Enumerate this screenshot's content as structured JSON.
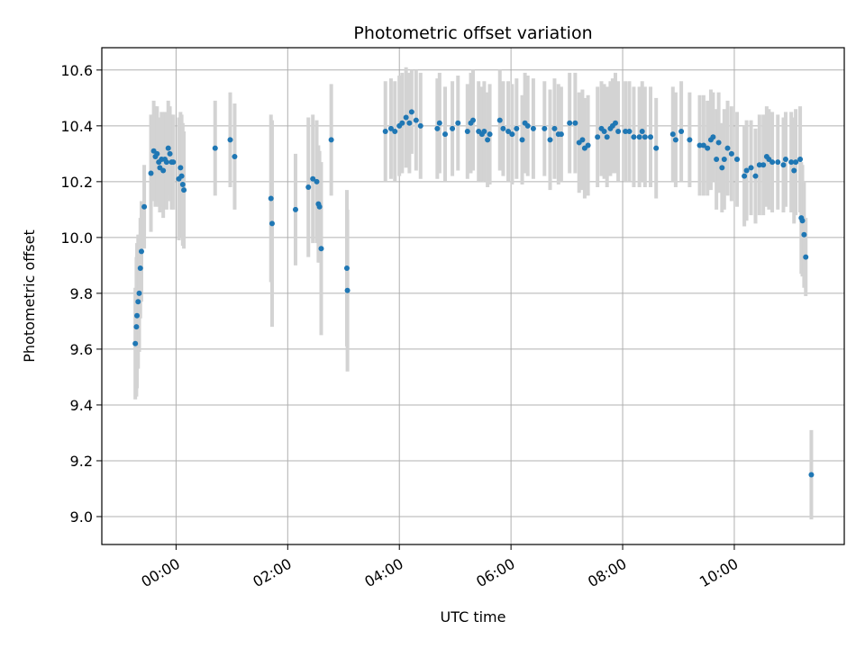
{
  "chart_data": {
    "type": "scatter",
    "title": "Photometric offset variation",
    "xlabel": "UTC time",
    "ylabel": "Photometric offset",
    "xlim_hours": [
      -1.33,
      11.97
    ],
    "ylim": [
      8.9,
      10.68
    ],
    "x_ticks": [
      {
        "hour": 0,
        "label": "00:00"
      },
      {
        "hour": 2,
        "label": "02:00"
      },
      {
        "hour": 4,
        "label": "04:00"
      },
      {
        "hour": 6,
        "label": "06:00"
      },
      {
        "hour": 8,
        "label": "08:00"
      },
      {
        "hour": 10,
        "label": "10:00"
      }
    ],
    "y_ticks": [
      9.0,
      9.2,
      9.4,
      9.6,
      9.8,
      10.0,
      10.2,
      10.4,
      10.6
    ],
    "grid": true,
    "point_color": "#1f77b4",
    "errorbar_color": "#d3d3d3",
    "points": [
      [
        -0.73,
        9.62,
        0.2
      ],
      [
        -0.71,
        9.68,
        0.25
      ],
      [
        -0.7,
        9.72,
        0.26
      ],
      [
        -0.68,
        9.77,
        0.24
      ],
      [
        -0.66,
        9.8,
        0.21
      ],
      [
        -0.64,
        9.89,
        0.18
      ],
      [
        -0.62,
        9.95,
        0.18
      ],
      [
        -0.57,
        10.11,
        0.15
      ],
      [
        -0.45,
        10.23,
        0.21
      ],
      [
        -0.4,
        10.31,
        0.18
      ],
      [
        -0.37,
        10.29,
        0.18
      ],
      [
        -0.34,
        10.3,
        0.17
      ],
      [
        -0.31,
        10.27,
        0.16
      ],
      [
        -0.29,
        10.25,
        0.16
      ],
      [
        -0.26,
        10.28,
        0.17
      ],
      [
        -0.23,
        10.24,
        0.17
      ],
      [
        -0.2,
        10.28,
        0.17
      ],
      [
        -0.17,
        10.27,
        0.17
      ],
      [
        -0.14,
        10.32,
        0.17
      ],
      [
        -0.11,
        10.3,
        0.17
      ],
      [
        -0.08,
        10.27,
        0.17
      ],
      [
        -0.05,
        10.27,
        0.17
      ],
      [
        0.05,
        10.21,
        0.22
      ],
      [
        0.08,
        10.25,
        0.2
      ],
      [
        0.1,
        10.22,
        0.22
      ],
      [
        0.12,
        10.19,
        0.22
      ],
      [
        0.14,
        10.17,
        0.21
      ],
      [
        0.7,
        10.32,
        0.17
      ],
      [
        0.97,
        10.35,
        0.17
      ],
      [
        1.05,
        10.29,
        0.19
      ],
      [
        1.7,
        10.14,
        0.3
      ],
      [
        1.72,
        10.05,
        0.37
      ],
      [
        2.14,
        10.1,
        0.2
      ],
      [
        2.37,
        10.18,
        0.25
      ],
      [
        2.45,
        10.21,
        0.23
      ],
      [
        2.52,
        10.2,
        0.22
      ],
      [
        2.55,
        10.12,
        0.21
      ],
      [
        2.57,
        10.11,
        0.2
      ],
      [
        2.6,
        9.96,
        0.31
      ],
      [
        2.78,
        10.35,
        0.2
      ],
      [
        3.06,
        9.89,
        0.28
      ],
      [
        3.07,
        9.81,
        0.29
      ],
      [
        3.75,
        10.38,
        0.18
      ],
      [
        3.85,
        10.39,
        0.18
      ],
      [
        3.92,
        10.38,
        0.18
      ],
      [
        4.0,
        10.4,
        0.18
      ],
      [
        4.05,
        10.41,
        0.18
      ],
      [
        4.12,
        10.43,
        0.18
      ],
      [
        4.18,
        10.41,
        0.18
      ],
      [
        4.22,
        10.45,
        0.15
      ],
      [
        4.3,
        10.42,
        0.18
      ],
      [
        4.38,
        10.4,
        0.19
      ],
      [
        4.68,
        10.39,
        0.18
      ],
      [
        4.72,
        10.41,
        0.18
      ],
      [
        4.82,
        10.37,
        0.17
      ],
      [
        4.95,
        10.39,
        0.17
      ],
      [
        5.05,
        10.41,
        0.17
      ],
      [
        5.22,
        10.38,
        0.17
      ],
      [
        5.28,
        10.41,
        0.18
      ],
      [
        5.32,
        10.42,
        0.18
      ],
      [
        5.42,
        10.38,
        0.18
      ],
      [
        5.48,
        10.37,
        0.17
      ],
      [
        5.52,
        10.38,
        0.18
      ],
      [
        5.58,
        10.35,
        0.17
      ],
      [
        5.62,
        10.37,
        0.18
      ],
      [
        5.8,
        10.42,
        0.18
      ],
      [
        5.86,
        10.39,
        0.17
      ],
      [
        5.95,
        10.38,
        0.18
      ],
      [
        6.02,
        10.37,
        0.18
      ],
      [
        6.1,
        10.39,
        0.18
      ],
      [
        6.2,
        10.35,
        0.16
      ],
      [
        6.25,
        10.41,
        0.18
      ],
      [
        6.3,
        10.4,
        0.18
      ],
      [
        6.4,
        10.39,
        0.18
      ],
      [
        6.6,
        10.39,
        0.17
      ],
      [
        6.7,
        10.35,
        0.18
      ],
      [
        6.78,
        10.39,
        0.18
      ],
      [
        6.85,
        10.37,
        0.18
      ],
      [
        6.9,
        10.37,
        0.17
      ],
      [
        7.05,
        10.41,
        0.18
      ],
      [
        7.15,
        10.41,
        0.18
      ],
      [
        7.22,
        10.34,
        0.18
      ],
      [
        7.28,
        10.35,
        0.18
      ],
      [
        7.32,
        10.32,
        0.18
      ],
      [
        7.38,
        10.33,
        0.18
      ],
      [
        7.55,
        10.36,
        0.18
      ],
      [
        7.62,
        10.39,
        0.17
      ],
      [
        7.67,
        10.38,
        0.17
      ],
      [
        7.72,
        10.36,
        0.18
      ],
      [
        7.78,
        10.39,
        0.17
      ],
      [
        7.82,
        10.4,
        0.17
      ],
      [
        7.87,
        10.41,
        0.18
      ],
      [
        7.92,
        10.38,
        0.18
      ],
      [
        8.05,
        10.38,
        0.18
      ],
      [
        8.12,
        10.38,
        0.18
      ],
      [
        8.2,
        10.36,
        0.18
      ],
      [
        8.3,
        10.36,
        0.18
      ],
      [
        8.35,
        10.38,
        0.18
      ],
      [
        8.4,
        10.36,
        0.18
      ],
      [
        8.5,
        10.36,
        0.18
      ],
      [
        8.6,
        10.32,
        0.18
      ],
      [
        8.9,
        10.37,
        0.17
      ],
      [
        8.95,
        10.35,
        0.17
      ],
      [
        9.05,
        10.38,
        0.18
      ],
      [
        9.2,
        10.35,
        0.17
      ],
      [
        9.38,
        10.33,
        0.18
      ],
      [
        9.45,
        10.33,
        0.18
      ],
      [
        9.52,
        10.32,
        0.17
      ],
      [
        9.58,
        10.35,
        0.18
      ],
      [
        9.62,
        10.36,
        0.16
      ],
      [
        9.68,
        10.28,
        0.18
      ],
      [
        9.72,
        10.34,
        0.18
      ],
      [
        9.78,
        10.25,
        0.16
      ],
      [
        9.82,
        10.28,
        0.18
      ],
      [
        9.88,
        10.32,
        0.17
      ],
      [
        9.95,
        10.3,
        0.17
      ],
      [
        10.05,
        10.28,
        0.17
      ],
      [
        10.18,
        10.22,
        0.18
      ],
      [
        10.22,
        10.24,
        0.18
      ],
      [
        10.3,
        10.25,
        0.17
      ],
      [
        10.38,
        10.22,
        0.17
      ],
      [
        10.45,
        10.26,
        0.18
      ],
      [
        10.52,
        10.26,
        0.18
      ],
      [
        10.58,
        10.29,
        0.18
      ],
      [
        10.62,
        10.28,
        0.18
      ],
      [
        10.68,
        10.27,
        0.18
      ],
      [
        10.78,
        10.27,
        0.17
      ],
      [
        10.88,
        10.26,
        0.17
      ],
      [
        10.92,
        10.28,
        0.17
      ],
      [
        11.02,
        10.27,
        0.18
      ],
      [
        11.07,
        10.24,
        0.19
      ],
      [
        11.1,
        10.27,
        0.19
      ],
      [
        11.18,
        10.28,
        0.19
      ],
      [
        11.2,
        10.07,
        0.2
      ],
      [
        11.22,
        10.06,
        0.2
      ],
      [
        11.25,
        10.01,
        0.19
      ],
      [
        11.28,
        9.93,
        0.14
      ],
      [
        11.38,
        9.15,
        0.16
      ]
    ]
  }
}
